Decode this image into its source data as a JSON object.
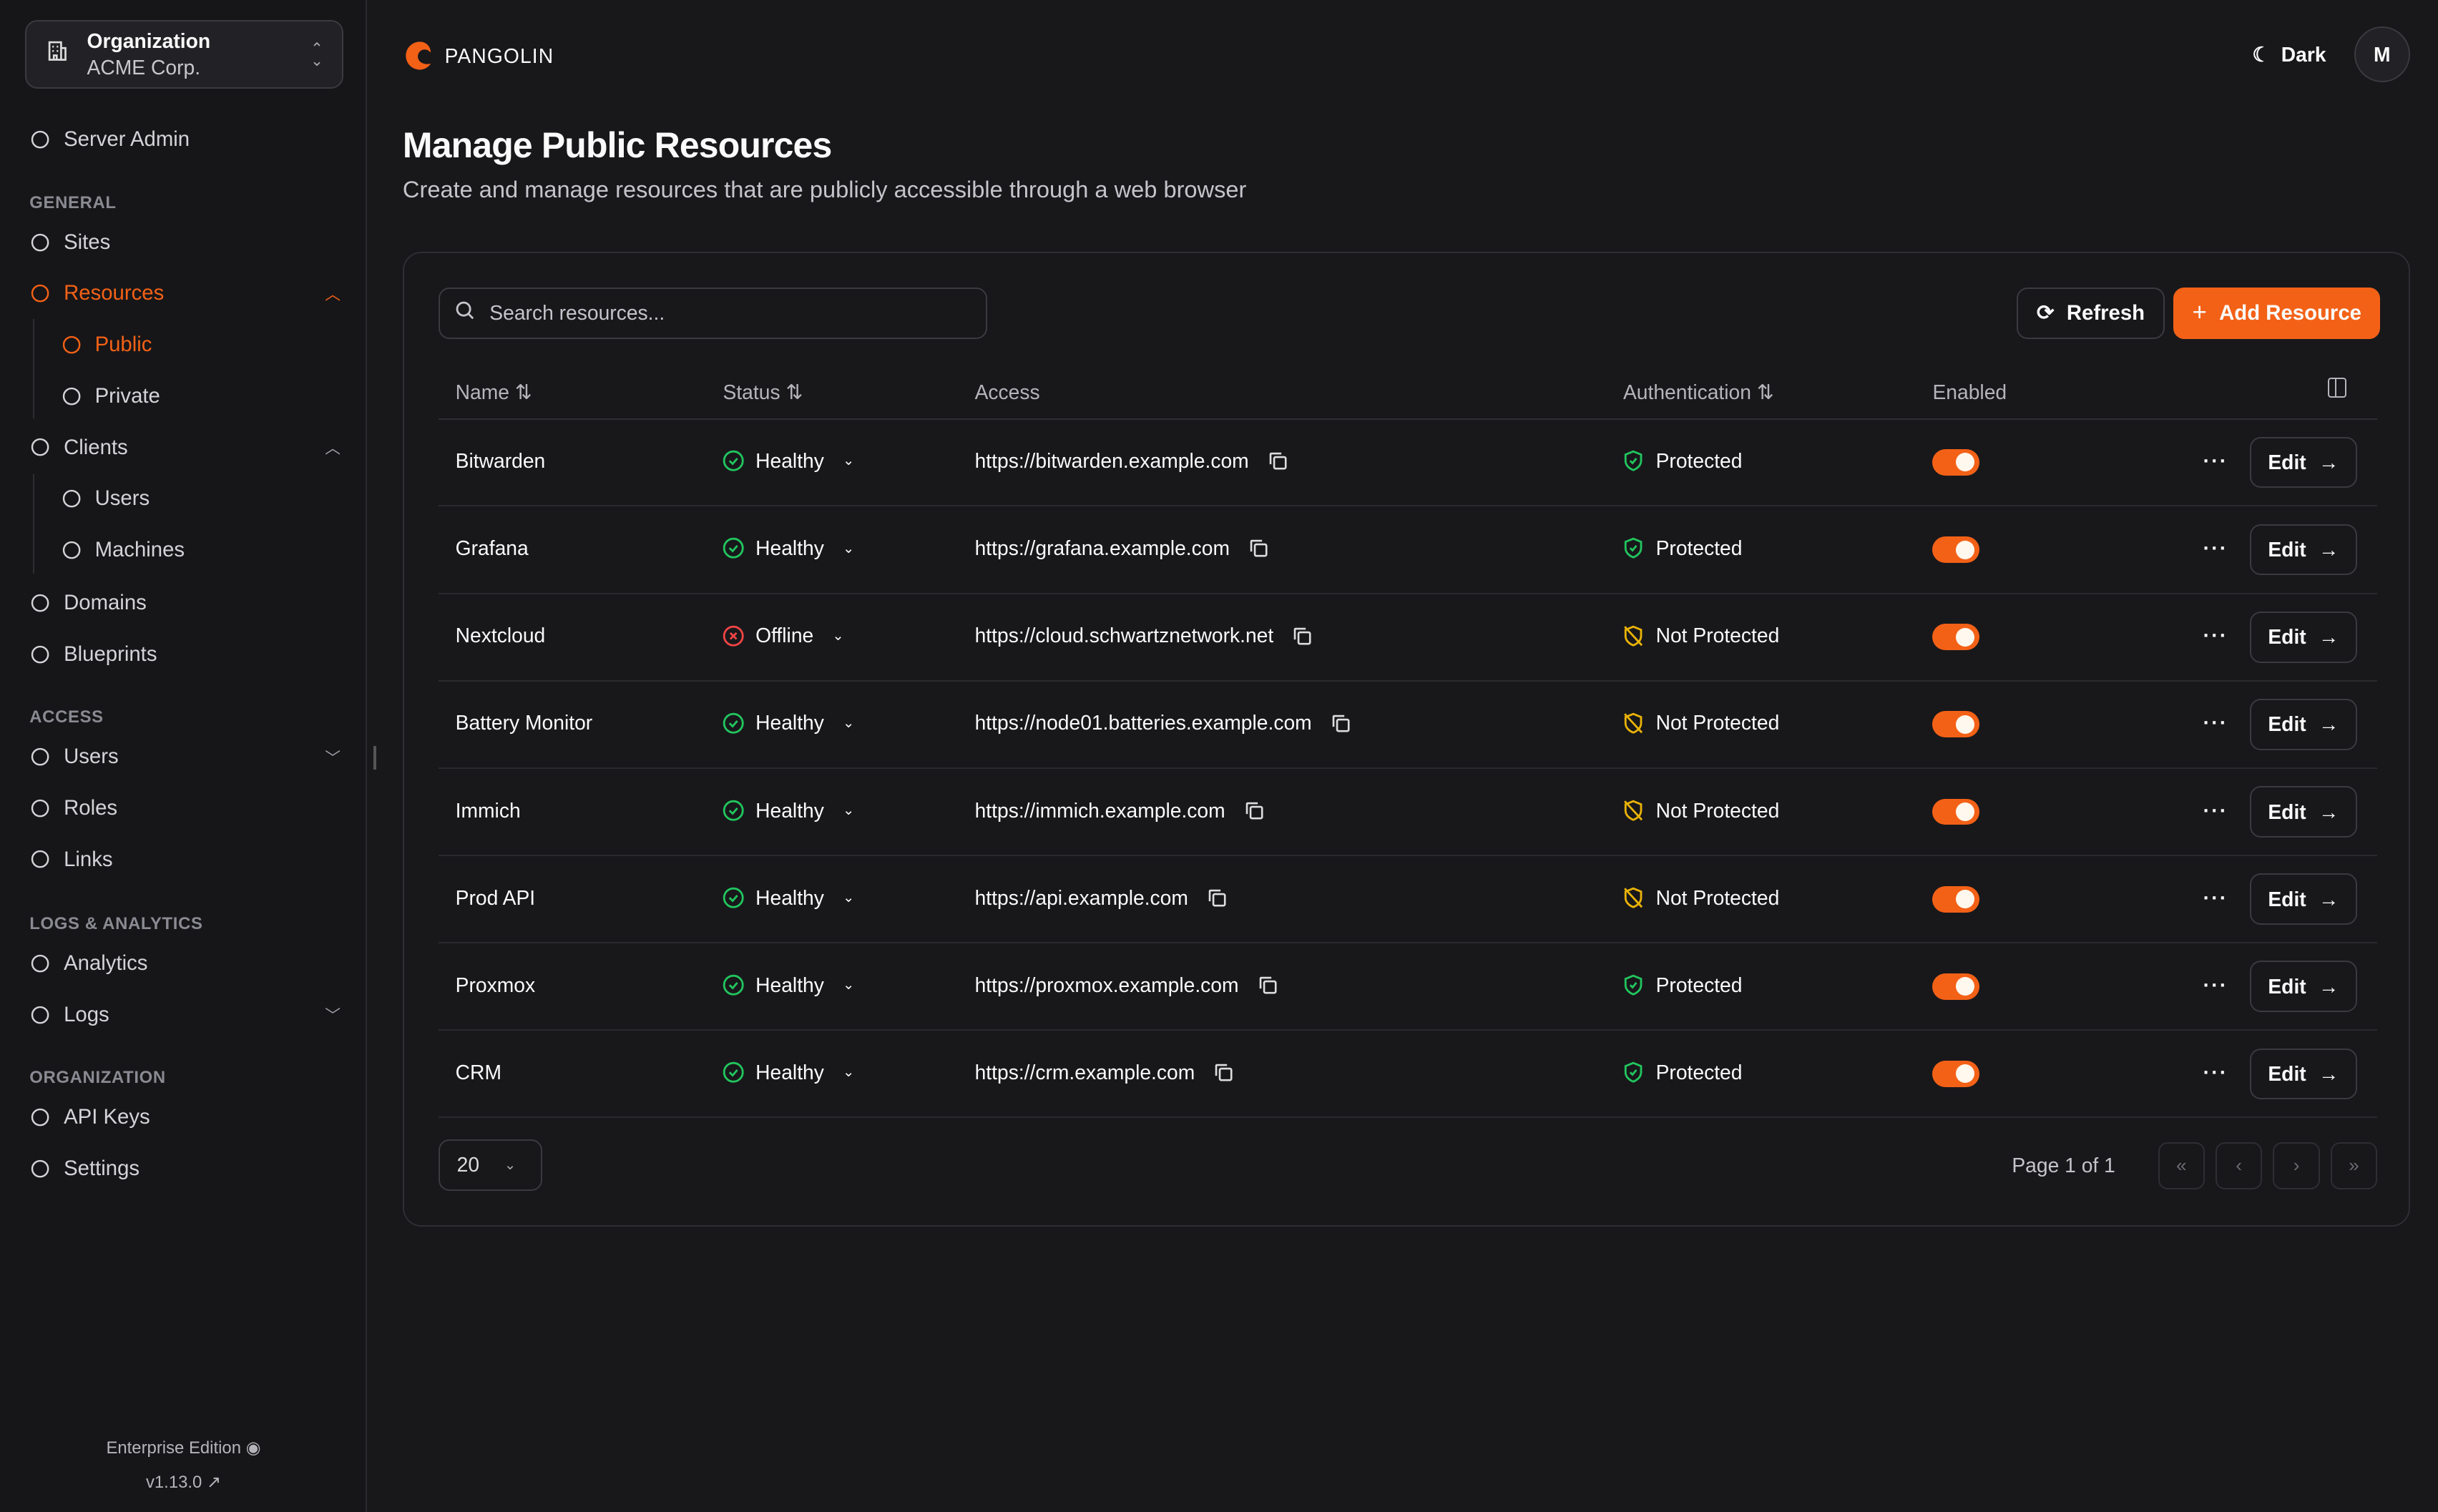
{
  "org": {
    "label": "Organization",
    "name": "ACME Corp."
  },
  "sidebar": {
    "server_admin": "Server Admin",
    "sections": [
      "GENERAL",
      "ACCESS",
      "LOGS & ANALYTICS",
      "ORGANIZATION"
    ],
    "items": [
      {
        "label": "Sites",
        "icon": "sites-icon"
      },
      {
        "label": "Resources",
        "icon": "resources-icon",
        "active": true,
        "caret": "up"
      },
      {
        "label": "Public",
        "icon": "globe-icon",
        "active": true,
        "child": true
      },
      {
        "label": "Private",
        "icon": "globe-lock-icon",
        "child": true
      },
      {
        "label": "Clients",
        "icon": "monitor-icon",
        "caret": "up"
      },
      {
        "label": "Users",
        "icon": "laptop-icon",
        "child": true
      },
      {
        "label": "Machines",
        "icon": "server-icon",
        "child": true
      },
      {
        "label": "Domains",
        "icon": "globe-icon"
      },
      {
        "label": "Blueprints",
        "icon": "file-icon"
      },
      {
        "label": "Users",
        "icon": "user-icon",
        "caret": "down"
      },
      {
        "label": "Roles",
        "icon": "users-icon"
      },
      {
        "label": "Links",
        "icon": "link-icon"
      },
      {
        "label": "Analytics",
        "icon": "chart-icon"
      },
      {
        "label": "Logs",
        "icon": "list-icon",
        "caret": "down"
      },
      {
        "label": "API Keys",
        "icon": "key-icon"
      },
      {
        "label": "Settings",
        "icon": "gear-icon"
      }
    ],
    "edition": "Enterprise Edition",
    "version": "v1.13.0"
  },
  "header": {
    "brand": "PANGOLIN",
    "theme": "Dark",
    "avatar": "M"
  },
  "page": {
    "title": "Manage Public Resources",
    "subtitle": "Create and manage resources that are publicly accessible through a web browser"
  },
  "toolbar": {
    "search_placeholder": "Search resources...",
    "refresh": "Refresh",
    "add": "Add Resource"
  },
  "table": {
    "columns": [
      "Name",
      "Status",
      "Access",
      "Authentication",
      "Enabled"
    ],
    "edit_label": "Edit",
    "rows": [
      {
        "name": "Bitwarden",
        "status": "Healthy",
        "access": "https://bitwarden.example.com",
        "auth": "Protected",
        "enabled": true
      },
      {
        "name": "Grafana",
        "status": "Healthy",
        "access": "https://grafana.example.com",
        "auth": "Protected",
        "enabled": true
      },
      {
        "name": "Nextcloud",
        "status": "Offline",
        "access": "https://cloud.schwartznetwork.net",
        "auth": "Not Protected",
        "enabled": true
      },
      {
        "name": "Battery Monitor",
        "status": "Healthy",
        "access": "https://node01.batteries.example.com",
        "auth": "Not Protected",
        "enabled": true
      },
      {
        "name": "Immich",
        "status": "Healthy",
        "access": "https://immich.example.com",
        "auth": "Not Protected",
        "enabled": true
      },
      {
        "name": "Prod API",
        "status": "Healthy",
        "access": "https://api.example.com",
        "auth": "Not Protected",
        "enabled": true
      },
      {
        "name": "Proxmox",
        "status": "Healthy",
        "access": "https://proxmox.example.com",
        "auth": "Protected",
        "enabled": true
      },
      {
        "name": "CRM",
        "status": "Healthy",
        "access": "https://crm.example.com",
        "auth": "Protected",
        "enabled": true
      }
    ]
  },
  "pagination": {
    "page_size": "20",
    "page_info": "Page 1 of 1"
  },
  "colors": {
    "accent": "#f36117",
    "healthy": "#22c55e",
    "offline": "#ef4444",
    "warning": "#eab308"
  }
}
